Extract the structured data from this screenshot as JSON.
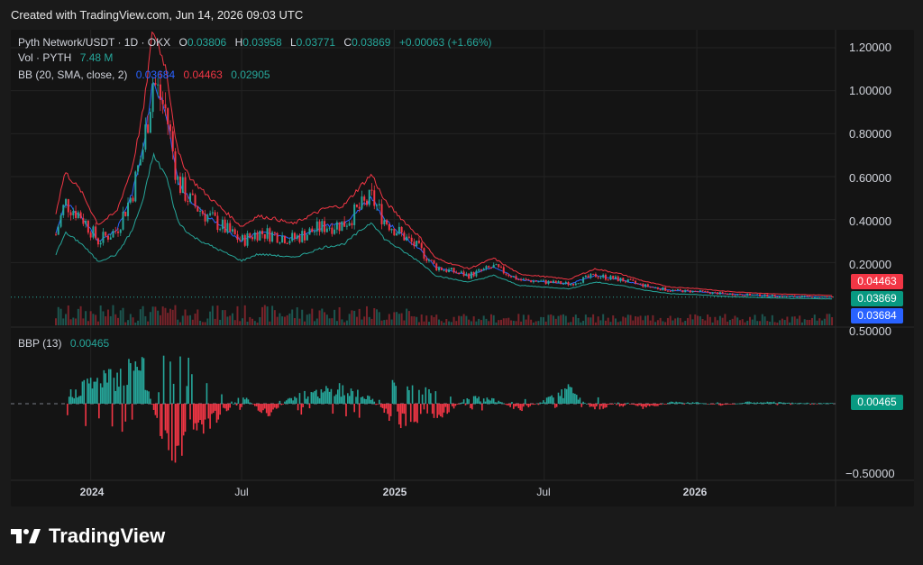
{
  "caption": "Created with TradingView.com, Jun 14, 2026 09:03 UTC",
  "brand": {
    "name": "TradingView",
    "icon": "tradingview-logo-icon"
  },
  "legend": {
    "symbol": "Pyth Network/USDT · 1D · OKX",
    "o_label": "O",
    "o_value": "0.03806",
    "h_label": "H",
    "h_value": "0.03958",
    "l_label": "L",
    "l_value": "0.03771",
    "c_label": "C",
    "c_value": "0.03869",
    "change": "+0.00063 (+1.66%)",
    "vol_label": "Vol · PYTH",
    "vol_value": "7.48 M",
    "bb_label": "BB (20, SMA, close, 2)",
    "bb_basis": "0.03684",
    "bb_upper": "0.04463",
    "bb_lower": "0.02905",
    "bbp_label": "BBP (13)",
    "bbp_value": "0.00465"
  },
  "price_axis": {
    "ticks": [
      "1.20000",
      "1.00000",
      "0.80000",
      "0.60000",
      "0.40000",
      "0.20000"
    ]
  },
  "bbp_axis": {
    "ticks": [
      "0.50000",
      "−0.50000"
    ]
  },
  "price_tags": {
    "upper": "0.04463",
    "close": "0.03869",
    "basis": "0.03684",
    "bbp": "0.00465"
  },
  "x_axis": {
    "ticks": [
      {
        "label": "2024",
        "bold": true
      },
      {
        "label": "Jul",
        "bold": false
      },
      {
        "label": "2025",
        "bold": true
      },
      {
        "label": "Jul",
        "bold": false
      },
      {
        "label": "2026",
        "bold": true
      }
    ]
  },
  "colors": {
    "up": "#26a69a",
    "down": "#f23645",
    "bb_upper": "#f23645",
    "bb_basis": "#2962ff",
    "bb_lower": "#26a69a"
  },
  "chart_data": [
    {
      "type": "line",
      "title": "Pyth Network/USDT · 1D · OKX",
      "series": [
        {
          "name": "C",
          "x": [
            "2023-11-20",
            "2023-12-01",
            "2023-12-20",
            "2024-01-10",
            "2024-02-01",
            "2024-02-20",
            "2024-03-05",
            "2024-03-16",
            "2024-04-01",
            "2024-04-15",
            "2024-05-01",
            "2024-05-20",
            "2024-06-10",
            "2024-07-01",
            "2024-07-20",
            "2024-08-10",
            "2024-09-01",
            "2024-09-20",
            "2024-10-10",
            "2024-11-01",
            "2024-11-20",
            "2024-12-05",
            "2024-12-20",
            "2025-01-10",
            "2025-02-01",
            "2025-02-20",
            "2025-03-10",
            "2025-04-01",
            "2025-05-01",
            "2025-06-01",
            "2025-07-01",
            "2025-08-01",
            "2025-08-15",
            "2025-09-01",
            "2025-10-01",
            "2025-11-01",
            "2025-12-01",
            "2026-01-01",
            "2026-02-01",
            "2026-03-01",
            "2026-04-01",
            "2026-05-01",
            "2026-06-14"
          ],
          "values": [
            0.33,
            0.48,
            0.42,
            0.3,
            0.35,
            0.52,
            0.75,
            1.05,
            0.9,
            0.58,
            0.48,
            0.42,
            0.36,
            0.3,
            0.34,
            0.33,
            0.31,
            0.34,
            0.37,
            0.38,
            0.45,
            0.5,
            0.4,
            0.33,
            0.26,
            0.18,
            0.16,
            0.14,
            0.18,
            0.12,
            0.11,
            0.1,
            0.12,
            0.14,
            0.12,
            0.09,
            0.07,
            0.065,
            0.055,
            0.05,
            0.045,
            0.042,
            0.03869
          ]
        },
        {
          "name": "BB upper",
          "x": [
            "2023-11-20",
            "2024-03-16",
            "2024-12-05",
            "2026-06-14"
          ],
          "values": [
            0.55,
            1.14,
            0.55,
            0.04463
          ]
        },
        {
          "name": "BB basis",
          "x": [
            "2023-11-20",
            "2024-03-16",
            "2024-12-05",
            "2026-06-14"
          ],
          "values": [
            0.42,
            0.93,
            0.45,
            0.03684
          ]
        },
        {
          "name": "BB lower",
          "x": [
            "2023-11-20",
            "2024-03-16",
            "2024-12-05",
            "2026-06-14"
          ],
          "values": [
            0.3,
            0.62,
            0.35,
            0.02905
          ]
        }
      ],
      "ylim": [
        0,
        1.25
      ],
      "grid": true
    },
    {
      "type": "bar",
      "title": "BBP (13)",
      "x": [
        "2023-12",
        "2024-01",
        "2024-02",
        "2024-03",
        "2024-04",
        "2024-05",
        "2024-06",
        "2024-07",
        "2024-08",
        "2024-09",
        "2024-10",
        "2024-11",
        "2024-12",
        "2025-01",
        "2025-02",
        "2025-03",
        "2025-04",
        "2025-05",
        "2025-06",
        "2025-07",
        "2025-08",
        "2025-09",
        "2025-10",
        "2025-11",
        "2025-12",
        "2026-01",
        "2026-02",
        "2026-03",
        "2026-04",
        "2026-05",
        "2026-06"
      ],
      "values": [
        0.05,
        0.15,
        0.18,
        0.3,
        -0.35,
        -0.2,
        -0.12,
        0.06,
        -0.08,
        0.05,
        0.08,
        0.1,
        0.06,
        -0.12,
        -0.1,
        -0.07,
        0.04,
        0.03,
        -0.04,
        0.02,
        0.1,
        -0.05,
        0.02,
        -0.03,
        0.01,
        0.01,
        -0.01,
        0.01,
        0.01,
        0.005,
        0.00465
      ],
      "ylim": [
        -0.6,
        0.6
      ]
    }
  ]
}
